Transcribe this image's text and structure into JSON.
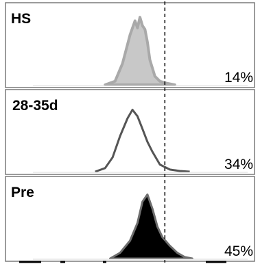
{
  "chart_data": [
    {
      "type": "area",
      "label": "HS",
      "percent": "14%",
      "x": [
        0.4,
        0.44,
        0.47,
        0.5,
        0.52,
        0.53,
        0.54,
        0.55,
        0.56,
        0.57,
        0.58,
        0.6,
        0.62,
        0.65,
        0.68
      ],
      "y": [
        0.0,
        0.05,
        0.3,
        0.7,
        0.9,
        0.8,
        0.95,
        0.83,
        0.78,
        0.6,
        0.35,
        0.12,
        0.05,
        0.02,
        0.0
      ],
      "style": "filled-gray"
    },
    {
      "type": "line",
      "label": "28-35d",
      "percent": "34%",
      "x": [
        0.36,
        0.4,
        0.43,
        0.46,
        0.49,
        0.51,
        0.53,
        0.55,
        0.57,
        0.59,
        0.62,
        0.66,
        0.7,
        0.74
      ],
      "y": [
        0.0,
        0.05,
        0.2,
        0.5,
        0.75,
        0.87,
        0.78,
        0.6,
        0.42,
        0.28,
        0.1,
        0.03,
        0.01,
        0.0
      ],
      "style": "outline"
    },
    {
      "type": "area",
      "label": "Pre",
      "percent": "45%",
      "x": [
        0.42,
        0.46,
        0.5,
        0.53,
        0.55,
        0.57,
        0.59,
        0.61,
        0.63,
        0.66,
        0.69,
        0.72,
        0.75
      ],
      "y": [
        0.0,
        0.08,
        0.25,
        0.5,
        0.8,
        0.9,
        0.7,
        0.45,
        0.3,
        0.18,
        0.08,
        0.02,
        0.0
      ],
      "style": "filled-black"
    }
  ],
  "gate_x": 0.64
}
